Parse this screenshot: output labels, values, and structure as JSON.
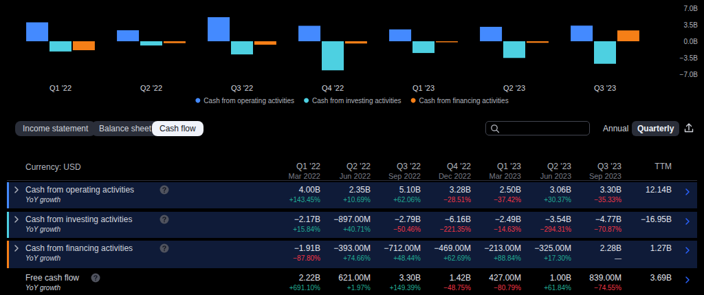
{
  "chart_data": {
    "type": "bar",
    "categories": [
      "Q1 '22",
      "Q2 '22",
      "Q3 '22",
      "Q4 '22",
      "Q1 '23",
      "Q2 '23",
      "Q3 '23"
    ],
    "series": [
      {
        "name": "Cash from operating activities",
        "color": "#448aff",
        "values": [
          4.0,
          2.35,
          5.1,
          3.28,
          2.5,
          3.06,
          3.3
        ]
      },
      {
        "name": "Cash from investing activities",
        "color": "#4dd0e1",
        "values": [
          -2.17,
          -0.897,
          -2.79,
          -6.16,
          -2.49,
          -3.54,
          -4.77
        ]
      },
      {
        "name": "Cash from financing activities",
        "color": "#f57f17",
        "values": [
          -1.91,
          -0.393,
          -0.712,
          -0.469,
          -0.213,
          -0.325,
          2.28
        ]
      }
    ],
    "ylim": [
      -7,
      7
    ],
    "yticks": [
      {
        "value": -7,
        "label": "−7.0B"
      },
      {
        "value": -3.5,
        "label": "−3.5B"
      },
      {
        "value": 0,
        "label": "0.0B"
      },
      {
        "value": 3.5,
        "label": "3.5B"
      },
      {
        "value": 7,
        "label": "7.0B"
      }
    ],
    "grid": false,
    "legend": "bottom"
  },
  "tabs": {
    "items": [
      "Income statement",
      "Balance sheet",
      "Cash flow"
    ],
    "active": "Cash flow"
  },
  "period_toggle": {
    "items": [
      "Annual",
      "Quarterly"
    ],
    "active": "Quarterly"
  },
  "table": {
    "currency": "Currency: USD",
    "columns": [
      {
        "label": "Q1 '22",
        "date": "Mar 2022"
      },
      {
        "label": "Q2 '22",
        "date": "Jun 2022"
      },
      {
        "label": "Q3 '22",
        "date": "Sep 2022"
      },
      {
        "label": "Q4 '22",
        "date": "Dec 2022"
      },
      {
        "label": "Q1 '23",
        "date": "Mar 2023"
      },
      {
        "label": "Q2 '23",
        "date": "Jun 2023"
      },
      {
        "label": "Q3 '23",
        "date": "Sep 2023"
      },
      {
        "label": "TTM",
        "date": null
      }
    ],
    "rows": [
      {
        "name": "Cash from operating activities",
        "sub": "YoY growth",
        "values": [
          "4.00B",
          "2.35B",
          "5.10B",
          "3.28B",
          "2.50B",
          "3.06B",
          "3.30B",
          "12.14B"
        ],
        "growth": [
          "+143.45%",
          "+10.69%",
          "+62.06%",
          "−28.51%",
          "−37.42%",
          "+30.37%",
          "−35.33%",
          null
        ]
      },
      {
        "name": "Cash from investing activities",
        "sub": "YoY growth",
        "values": [
          "−2.17B",
          "−897.00M",
          "−2.79B",
          "−6.16B",
          "−2.49B",
          "−3.54B",
          "−4.77B",
          "−16.95B"
        ],
        "growth": [
          "+15.84%",
          "+40.71%",
          "−50.46%",
          "−221.35%",
          "−14.63%",
          "−294.31%",
          "−70.87%",
          null
        ]
      },
      {
        "name": "Cash from financing activities",
        "sub": "YoY growth",
        "values": [
          "−1.91B",
          "−393.00M",
          "−712.00M",
          "−469.00M",
          "−213.00M",
          "−325.00M",
          "2.28B",
          "1.27B"
        ],
        "growth": [
          "−87.80%",
          "+74.66%",
          "+48.44%",
          "+62.69%",
          "+88.84%",
          "+17.30%",
          "—",
          null
        ]
      },
      {
        "name": "Free cash flow",
        "sub": "YoY growth",
        "values": [
          "2.22B",
          "621.00M",
          "3.30B",
          "1.42B",
          "427.00M",
          "1.00B",
          "839.00M",
          "3.69B"
        ],
        "growth": [
          "+691.10%",
          "+1.97%",
          "+149.39%",
          "−48.75%",
          "−80.79%",
          "+61.84%",
          "−74.55%",
          null
        ]
      }
    ]
  }
}
